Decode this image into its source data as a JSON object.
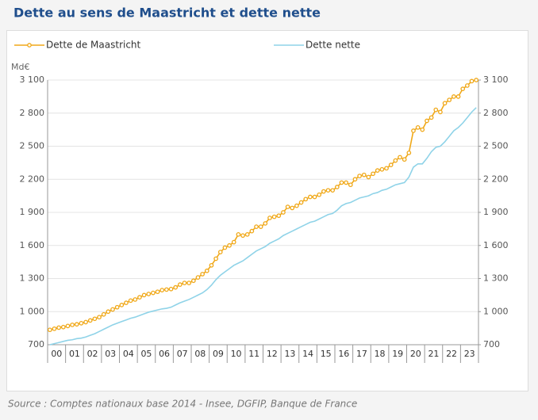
{
  "chart_data": {
    "type": "line",
    "title": "Dette au sens de Maastricht et dette nette",
    "source": "Source : Comptes nationaux base 2014 - Insee, DGFIP, Banque de France",
    "y_label": "Md€",
    "categories": [
      "00",
      null,
      null,
      null,
      "01",
      null,
      null,
      null,
      "02",
      null,
      null,
      null,
      "03",
      null,
      null,
      null,
      "04",
      null,
      null,
      null,
      "05",
      null,
      null,
      null,
      "06",
      null,
      null,
      null,
      "07",
      null,
      null,
      null,
      "08",
      null,
      null,
      null,
      "09",
      null,
      null,
      null,
      "10",
      null,
      null,
      null,
      "11",
      null,
      null,
      null,
      "12",
      null,
      null,
      null,
      "13",
      null,
      null,
      null,
      "14",
      null,
      null,
      null,
      "15",
      null,
      null,
      null,
      "16",
      null,
      null,
      null,
      "17",
      null,
      null,
      null,
      "18",
      null,
      null,
      null,
      "19",
      null,
      null,
      null,
      "20",
      null,
      null,
      null,
      "21",
      null,
      null,
      null,
      "22",
      null,
      null,
      null,
      "23",
      null,
      null,
      null
    ],
    "series": [
      {
        "name": "Dette de Maastricht",
        "color": "#f0a818",
        "markers": true,
        "values": [
          835,
          845,
          855,
          860,
          870,
          880,
          885,
          895,
          905,
          920,
          935,
          950,
          975,
          1000,
          1020,
          1040,
          1060,
          1080,
          1100,
          1110,
          1130,
          1150,
          1160,
          1170,
          1180,
          1195,
          1200,
          1205,
          1220,
          1245,
          1260,
          1260,
          1280,
          1310,
          1340,
          1370,
          1420,
          1480,
          1540,
          1580,
          1600,
          1630,
          1700,
          1690,
          1700,
          1730,
          1770,
          1770,
          1800,
          1850,
          1860,
          1870,
          1900,
          1950,
          1940,
          1960,
          1990,
          2020,
          2040,
          2040,
          2060,
          2090,
          2100,
          2100,
          2130,
          2170,
          2170,
          2150,
          2200,
          2230,
          2240,
          2220,
          2250,
          2280,
          2290,
          2300,
          2330,
          2370,
          2400,
          2380,
          2440,
          2640,
          2670,
          2650,
          2730,
          2760,
          2830,
          2810,
          2890,
          2920,
          2950,
          2950,
          3020,
          3050,
          3090,
          3100
        ]
      },
      {
        "name": "Dette nette",
        "color": "#8fd3e8",
        "markers": false,
        "values": [
          700,
          710,
          720,
          730,
          740,
          745,
          755,
          760,
          770,
          785,
          800,
          820,
          840,
          860,
          880,
          895,
          910,
          925,
          940,
          950,
          965,
          980,
          995,
          1005,
          1015,
          1025,
          1030,
          1040,
          1060,
          1080,
          1095,
          1110,
          1130,
          1150,
          1170,
          1200,
          1240,
          1290,
          1330,
          1360,
          1390,
          1420,
          1440,
          1460,
          1490,
          1520,
          1550,
          1570,
          1590,
          1620,
          1640,
          1660,
          1690,
          1710,
          1730,
          1750,
          1770,
          1790,
          1810,
          1820,
          1840,
          1860,
          1880,
          1890,
          1920,
          1960,
          1980,
          1990,
          2010,
          2030,
          2040,
          2050,
          2070,
          2080,
          2100,
          2110,
          2130,
          2150,
          2160,
          2170,
          2220,
          2310,
          2340,
          2340,
          2390,
          2450,
          2490,
          2500,
          2540,
          2590,
          2640,
          2670,
          2710,
          2760,
          2810,
          2850
        ]
      }
    ],
    "ylim": [
      700,
      3100
    ],
    "yticks": [
      {
        "value": 700,
        "label": "700"
      },
      {
        "value": 1000,
        "label": "1 000"
      },
      {
        "value": 1300,
        "label": "1 300"
      },
      {
        "value": 1600,
        "label": "1 600"
      },
      {
        "value": 1900,
        "label": "1 900"
      },
      {
        "value": 2200,
        "label": "2 200"
      },
      {
        "value": 2500,
        "label": "2 500"
      },
      {
        "value": 2800,
        "label": "2 800"
      },
      {
        "value": 3100,
        "label": "3 100"
      }
    ],
    "y2lim": [
      700,
      3100
    ],
    "y2ticks": [
      {
        "value": 700,
        "label": "700"
      },
      {
        "value": 1000,
        "label": "1 000"
      },
      {
        "value": 1300,
        "label": "1 300"
      },
      {
        "value": 1600,
        "label": "1 600"
      },
      {
        "value": 1900,
        "label": "1 900"
      },
      {
        "value": 2200,
        "label": "2 200"
      },
      {
        "value": 2500,
        "label": "2 500"
      },
      {
        "value": 2800,
        "label": "2 800"
      },
      {
        "value": 3100,
        "label": "3 100"
      }
    ],
    "grid": true
  }
}
